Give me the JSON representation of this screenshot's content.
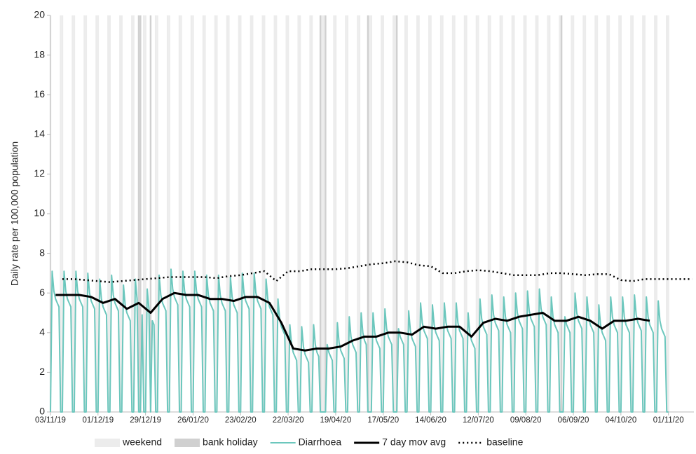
{
  "chart_data": {
    "type": "line",
    "y_label": "Daily rate per 100,000 population",
    "xlim": [
      0,
      379
    ],
    "xticks": [
      {
        "value": 0,
        "label": "03/11/19"
      },
      {
        "value": 28,
        "label": "01/12/19"
      },
      {
        "value": 56,
        "label": "29/12/19"
      },
      {
        "value": 84,
        "label": "26/01/20"
      },
      {
        "value": 112,
        "label": "23/02/20"
      },
      {
        "value": 140,
        "label": "22/03/20"
      },
      {
        "value": 168,
        "label": "19/04/20"
      },
      {
        "value": 196,
        "label": "17/05/20"
      },
      {
        "value": 224,
        "label": "14/06/20"
      },
      {
        "value": 252,
        "label": "12/07/20"
      },
      {
        "value": 280,
        "label": "09/08/20"
      },
      {
        "value": 308,
        "label": "06/09/20"
      },
      {
        "value": 336,
        "label": "04/10/20"
      },
      {
        "value": 364,
        "label": "01/11/20"
      }
    ],
    "ylim": [
      0,
      20
    ],
    "yticks": [
      0,
      2,
      4,
      6,
      8,
      10,
      12,
      14,
      16,
      18,
      20
    ],
    "shading": [
      {
        "name": "weekend",
        "color": "#ececec"
      },
      {
        "name": "bank holiday",
        "color": "#d0d0d0",
        "days": [
          52,
          53,
          59,
          159,
          162,
          187,
          204,
          301
        ]
      }
    ],
    "series": [
      {
        "name": "Diarrhoea",
        "color": "#6cc7bd",
        "width": 2,
        "values": [
          0,
          7.1,
          6.1,
          5.7,
          5.5,
          5.3,
          0,
          0,
          7.1,
          6.1,
          5.7,
          5.5,
          5.3,
          0,
          0,
          7.1,
          6.1,
          5.7,
          5.5,
          5.3,
          0,
          0,
          7.0,
          6.0,
          5.6,
          5.4,
          5.2,
          0,
          0,
          6.7,
          5.7,
          5.3,
          5.1,
          4.9,
          0,
          0,
          6.9,
          5.9,
          5.5,
          5.3,
          5.1,
          0,
          0,
          6.4,
          5.4,
          5.0,
          4.8,
          4.6,
          0,
          0,
          6.7,
          5.7,
          0,
          0,
          4.9,
          0,
          0,
          6.2,
          5.2,
          0,
          4.6,
          4.4,
          0,
          0,
          6.9,
          5.9,
          5.5,
          5.3,
          5.1,
          0,
          0,
          7.2,
          6.2,
          5.8,
          5.6,
          5.4,
          0,
          0,
          7.1,
          6.1,
          5.7,
          5.5,
          5.3,
          0,
          0,
          7.1,
          6.1,
          5.7,
          5.5,
          5.3,
          0,
          0,
          6.9,
          5.9,
          5.5,
          5.3,
          5.1,
          0,
          0,
          6.9,
          5.9,
          5.5,
          5.3,
          5.1,
          0,
          0,
          6.8,
          5.8,
          5.4,
          5.2,
          5.0,
          0,
          0,
          7.0,
          6.0,
          5.6,
          5.4,
          5.2,
          0,
          0,
          7.0,
          6.0,
          5.6,
          5.4,
          5.2,
          0,
          0,
          6.7,
          5.7,
          5.3,
          5.1,
          4.9,
          0,
          0,
          5.7,
          4.7,
          4.3,
          4.1,
          3.9,
          0,
          0,
          4.4,
          3.4,
          3.0,
          2.8,
          2.6,
          0,
          0,
          4.3,
          3.3,
          2.9,
          2.7,
          2.5,
          0,
          0,
          4.4,
          3.4,
          3.0,
          2.8,
          0,
          0,
          0,
          0,
          3.4,
          3.0,
          2.8,
          2.6,
          0,
          0,
          4.5,
          3.5,
          3.1,
          2.9,
          2.7,
          0,
          0,
          4.8,
          3.8,
          3.4,
          3.2,
          3.0,
          0,
          0,
          5.0,
          4.0,
          3.6,
          3.4,
          0,
          0,
          0,
          5.0,
          4.0,
          3.6,
          3.4,
          3.2,
          0,
          0,
          5.2,
          4.2,
          3.8,
          3.6,
          3.4,
          0,
          0,
          0,
          4.2,
          3.8,
          3.6,
          3.4,
          0,
          0,
          5.1,
          4.1,
          3.7,
          3.5,
          3.3,
          0,
          0,
          5.5,
          4.5,
          4.1,
          3.9,
          3.7,
          0,
          0,
          5.4,
          4.4,
          4.0,
          3.8,
          3.6,
          0,
          0,
          5.5,
          4.5,
          4.1,
          3.9,
          3.7,
          0,
          0,
          5.5,
          4.5,
          4.1,
          3.9,
          3.7,
          0,
          0,
          5.0,
          4.0,
          3.6,
          3.4,
          3.2,
          0,
          0,
          5.7,
          4.7,
          4.3,
          4.1,
          3.9,
          0,
          0,
          5.9,
          4.9,
          4.5,
          4.3,
          4.1,
          0,
          0,
          5.8,
          4.8,
          4.4,
          4.2,
          4.0,
          0,
          0,
          6.0,
          5.0,
          4.6,
          4.4,
          4.2,
          0,
          0,
          6.1,
          5.1,
          4.7,
          4.5,
          4.3,
          0,
          0,
          6.2,
          5.2,
          4.8,
          4.6,
          4.4,
          0,
          0,
          5.8,
          4.8,
          4.4,
          4.2,
          4.0,
          0,
          0,
          0,
          4.8,
          4.4,
          4.2,
          4.0,
          0,
          0,
          6.0,
          5.0,
          4.6,
          4.4,
          4.2,
          0,
          0,
          5.8,
          4.8,
          4.4,
          4.2,
          4.0,
          0,
          0,
          5.4,
          4.4,
          4.0,
          3.8,
          3.6,
          0,
          0,
          5.8,
          4.8,
          4.4,
          4.2,
          4.0,
          0,
          0,
          5.8,
          4.8,
          4.4,
          4.2,
          4.0,
          0,
          0,
          5.9,
          4.9,
          4.5,
          4.3,
          4.1,
          0,
          0,
          5.8,
          4.8,
          4.4,
          4.2,
          4.0,
          0,
          0,
          5.6,
          4.6,
          4.2,
          4.0,
          3.8,
          0,
          0
        ]
      },
      {
        "name": "7 day mov avg",
        "color": "#000000",
        "width": 3,
        "x": [
          3,
          10,
          17,
          24,
          31,
          38,
          45,
          52,
          59,
          66,
          73,
          80,
          87,
          94,
          101,
          108,
          115,
          122,
          129,
          136,
          143,
          150,
          157,
          164,
          171,
          178,
          185,
          192,
          199,
          206,
          213,
          220,
          227,
          234,
          241,
          248,
          255,
          262,
          269,
          276,
          283,
          290,
          297,
          304,
          311,
          318,
          325,
          332,
          339,
          346,
          353
        ],
        "values": [
          5.9,
          5.9,
          5.9,
          5.8,
          5.5,
          5.7,
          5.2,
          5.5,
          5.0,
          5.7,
          6.0,
          5.9,
          5.9,
          5.7,
          5.7,
          5.6,
          5.8,
          5.8,
          5.5,
          4.5,
          3.2,
          3.1,
          3.2,
          3.2,
          3.3,
          3.6,
          3.8,
          3.8,
          4.0,
          4.0,
          3.9,
          4.3,
          4.2,
          4.3,
          4.3,
          3.8,
          4.5,
          4.7,
          4.6,
          4.8,
          4.9,
          5.0,
          4.6,
          4.6,
          4.8,
          4.6,
          4.2,
          4.6,
          4.6,
          4.7,
          4.6
        ]
      },
      {
        "name": "baseline",
        "color": "#000000",
        "width": 2.5,
        "dash": "2 4",
        "x": [
          7,
          14,
          21,
          28,
          35,
          42,
          49,
          56,
          63,
          70,
          77,
          84,
          91,
          98,
          105,
          112,
          119,
          126,
          133,
          140,
          147,
          154,
          161,
          168,
          175,
          182,
          189,
          196,
          203,
          210,
          217,
          224,
          231,
          238,
          245,
          252,
          259,
          266,
          273,
          280,
          287,
          294,
          301,
          308,
          315,
          322,
          329,
          336,
          343,
          350,
          357,
          364,
          371,
          378
        ],
        "values": [
          6.7,
          6.7,
          6.65,
          6.6,
          6.55,
          6.6,
          6.65,
          6.7,
          6.75,
          6.8,
          6.8,
          6.8,
          6.8,
          6.75,
          6.85,
          6.9,
          7.0,
          7.1,
          6.6,
          7.1,
          7.1,
          7.2,
          7.2,
          7.2,
          7.25,
          7.35,
          7.45,
          7.5,
          7.6,
          7.55,
          7.4,
          7.35,
          7.0,
          7.0,
          7.1,
          7.15,
          7.1,
          7.0,
          6.9,
          6.9,
          6.9,
          7.0,
          7.0,
          6.95,
          6.9,
          6.95,
          6.95,
          6.65,
          6.6,
          6.7,
          6.7,
          6.7,
          6.7,
          6.7
        ]
      }
    ]
  }
}
